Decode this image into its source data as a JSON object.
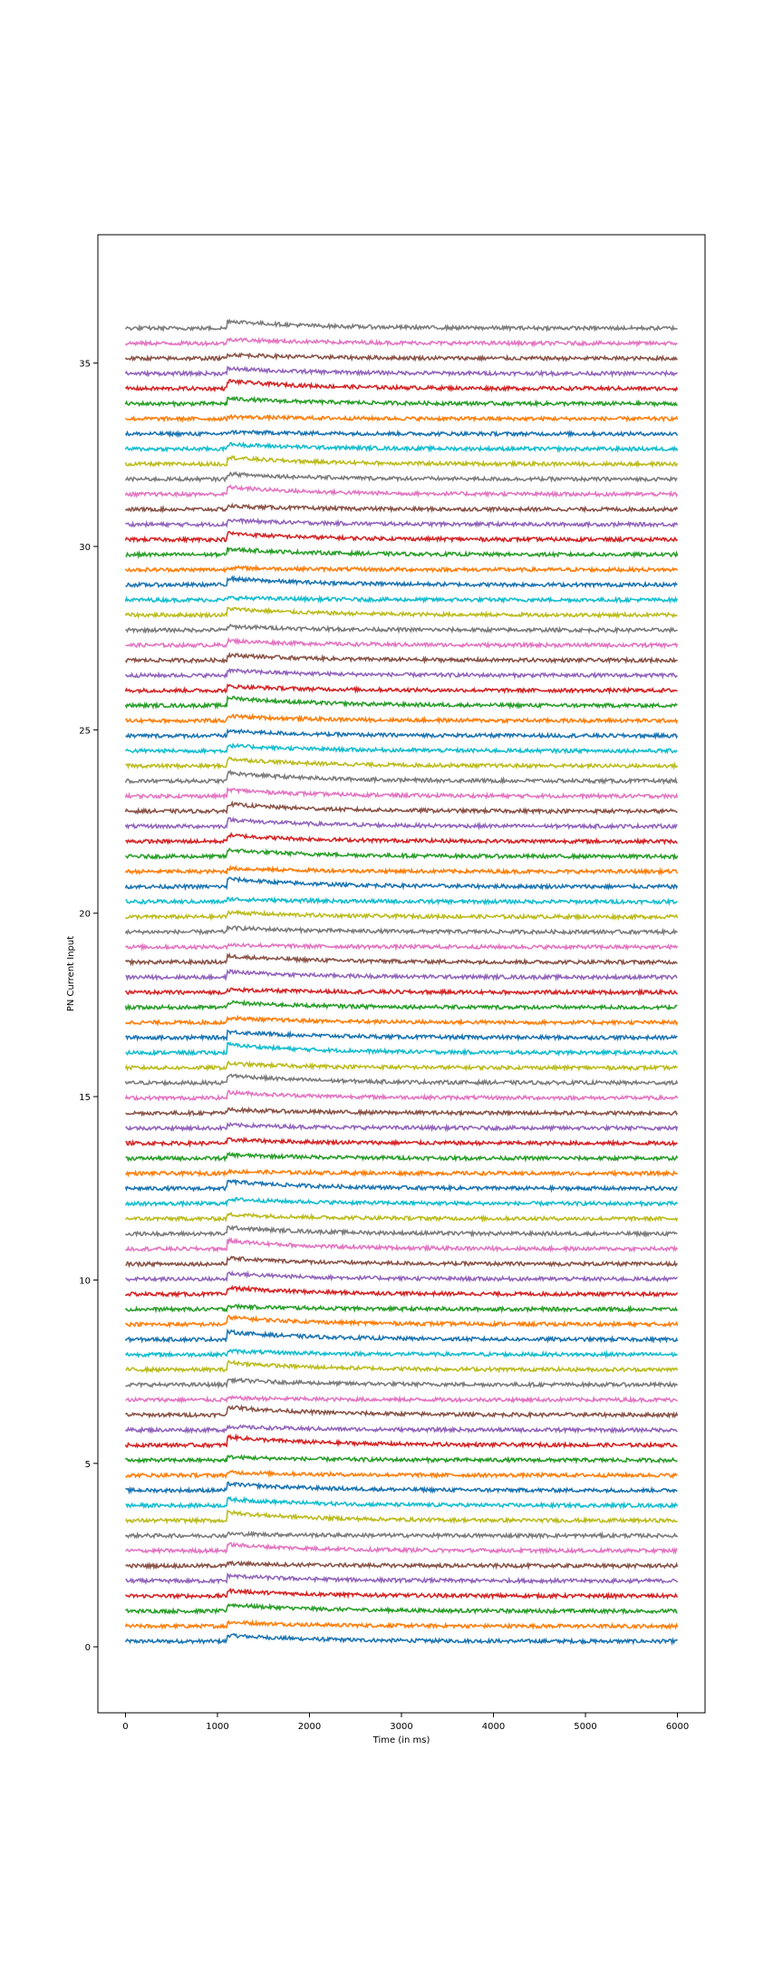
{
  "chart_data": {
    "type": "line",
    "title": "",
    "xlabel": "Time (in ms)",
    "ylabel": "PN Current Input",
    "xlim": [
      -300,
      6300
    ],
    "ylim": [
      -1.8,
      38.5
    ],
    "x_ticks": [
      0,
      1000,
      2000,
      3000,
      4000,
      5000,
      6000
    ],
    "y_ticks": [
      0,
      5,
      10,
      15,
      20,
      25,
      30,
      35
    ],
    "grid": false,
    "legend": "none",
    "series_count": 88,
    "series_x_range": [
      0,
      6000
    ],
    "series_offset_start": 0.15,
    "series_offset_step": 0.4115,
    "stimulus_onset_ms": 1100,
    "noise_amplitude": 0.05,
    "colors": [
      "#1f77b4",
      "#ff7f0e",
      "#2ca02c",
      "#d62728",
      "#9467bd",
      "#8c564b",
      "#e377c2",
      "#7f7f7f",
      "#bcbd22",
      "#17becf"
    ]
  }
}
